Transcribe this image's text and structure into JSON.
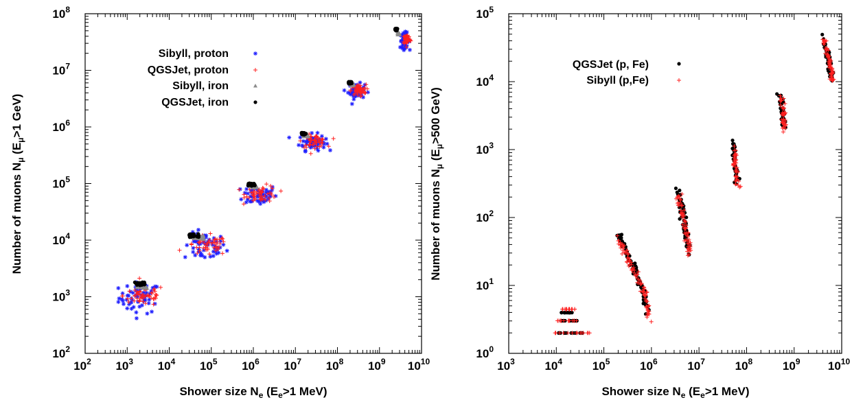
{
  "chart_data": [
    {
      "type": "scatter",
      "log_scale": {
        "x": true,
        "y": true
      },
      "xlabel": {
        "base": "Shower size N",
        "sub": "e",
        "mid": " (E",
        "sub2": "e",
        "tail": ">1 MeV)"
      },
      "ylabel": {
        "base": "Number of muons N",
        "sub": "μ",
        "mid": " (E",
        "sub2": "μ",
        "tail": ">1 GeV)"
      },
      "xlim_exp": [
        2,
        10
      ],
      "ylim_exp": [
        2,
        8
      ],
      "x_tick_labels": [
        "10",
        "10",
        "10",
        "10",
        "10",
        "10",
        "10",
        "10",
        "10"
      ],
      "x_tick_exps": [
        "2",
        "3",
        "4",
        "5",
        "6",
        "7",
        "8",
        "9",
        "10"
      ],
      "y_tick_labels": [
        "10",
        "10",
        "10",
        "10",
        "10",
        "10",
        "10"
      ],
      "y_tick_exps": [
        "2",
        "3",
        "4",
        "5",
        "6",
        "7",
        "8"
      ],
      "legend_position": "top-left",
      "series": [
        {
          "name": "Sibyll, proton",
          "marker": "star",
          "color": "#1f1fff",
          "clusters": [
            [
              3.3,
              2.98,
              0.55,
              0.25
            ],
            [
              4.85,
              3.88,
              0.55,
              0.22
            ],
            [
              6.15,
              4.8,
              0.45,
              0.17
            ],
            [
              7.4,
              5.73,
              0.35,
              0.13
            ],
            [
              8.45,
              6.63,
              0.22,
              0.12
            ],
            [
              9.6,
              7.53,
              0.12,
              0.12
            ]
          ]
        },
        {
          "name": "QGSJet, proton",
          "marker": "plus",
          "color": "#ff2020",
          "clusters": [
            [
              3.4,
              3.02,
              0.55,
              0.17
            ],
            [
              4.9,
              3.9,
              0.55,
              0.16
            ],
            [
              6.2,
              4.82,
              0.42,
              0.13
            ],
            [
              7.45,
              5.75,
              0.32,
              0.1
            ],
            [
              8.5,
              6.65,
              0.2,
              0.09
            ],
            [
              9.65,
              7.55,
              0.1,
              0.09
            ]
          ]
        },
        {
          "name": "Sibyll, iron",
          "marker": "triangle",
          "color": "#8c8c8c",
          "clusters": [
            [
              3.35,
              3.18,
              0.25,
              0.03
            ],
            [
              4.7,
              4.05,
              0.25,
              0.03
            ],
            [
              6.0,
              4.95,
              0.18,
              0.025
            ],
            [
              7.25,
              5.85,
              0.12,
              0.02
            ],
            [
              8.35,
              6.75,
              0.08,
              0.02
            ],
            [
              9.45,
              7.65,
              0.06,
              0.02
            ]
          ]
        },
        {
          "name": "QGSJet, iron",
          "marker": "dot",
          "color": "#000000",
          "clusters": [
            [
              3.3,
              3.23,
              0.25,
              0.03
            ],
            [
              4.6,
              4.08,
              0.25,
              0.03
            ],
            [
              5.95,
              4.98,
              0.18,
              0.025
            ],
            [
              7.2,
              5.88,
              0.12,
              0.02
            ],
            [
              8.3,
              6.78,
              0.08,
              0.02
            ],
            [
              9.4,
              7.72,
              0.06,
              0.02
            ]
          ]
        }
      ]
    },
    {
      "type": "scatter",
      "log_scale": {
        "x": true,
        "y": true
      },
      "xlabel": {
        "base": "Shower size N",
        "sub": "e",
        "mid": " (E",
        "sub2": "e",
        "tail": ">1 MeV)"
      },
      "ylabel": {
        "base": "Number of muons N",
        "sub": "μ",
        "mid": " (E",
        "sub2": "μ",
        "tail": ">500 GeV)"
      },
      "xlim_exp": [
        3,
        10
      ],
      "ylim_exp": [
        0,
        5
      ],
      "x_tick_labels": [
        "10",
        "10",
        "10",
        "10",
        "10",
        "10",
        "10",
        "10"
      ],
      "x_tick_exps": [
        "3",
        "4",
        "5",
        "6",
        "7",
        "8",
        "9",
        "10"
      ],
      "y_tick_labels": [
        "10",
        "10",
        "10",
        "10",
        "10",
        "10"
      ],
      "y_tick_exps": [
        "0",
        "1",
        "2",
        "3",
        "4",
        "5"
      ],
      "legend_position": "top-left",
      "series": [
        {
          "name": "QGSJet (p, Fe)",
          "marker": "dot",
          "color": "#000000",
          "tracks": [
            [
              [
                4.0,
                0.3
              ],
              [
                4.6,
                0.3
              ]
            ],
            [
              [
                4.05,
                0.48
              ],
              [
                4.45,
                0.48
              ]
            ],
            [
              [
                4.1,
                0.6
              ],
              [
                4.35,
                0.6
              ]
            ],
            [
              [
                5.3,
                1.75
              ],
              [
                5.5,
                1.45
              ],
              [
                5.7,
                1.15
              ],
              [
                5.85,
                0.9
              ],
              [
                5.9,
                0.6
              ]
            ],
            [
              [
                6.55,
                2.4
              ],
              [
                6.65,
                2.1
              ],
              [
                6.72,
                1.8
              ],
              [
                6.78,
                1.5
              ]
            ],
            [
              [
                7.72,
                3.1
              ],
              [
                7.76,
                2.8
              ],
              [
                7.8,
                2.5
              ]
            ],
            [
              [
                8.72,
                3.8
              ],
              [
                8.76,
                3.55
              ],
              [
                8.78,
                3.35
              ]
            ],
            [
              [
                9.6,
                4.65
              ],
              [
                9.7,
                4.4
              ],
              [
                9.75,
                4.2
              ],
              [
                9.8,
                4.05
              ]
            ]
          ]
        },
        {
          "name": "Sibyll (p,Fe)",
          "marker": "plus",
          "color": "#ff2020",
          "tracks": [
            [
              [
                3.95,
                0.3
              ],
              [
                4.7,
                0.3
              ]
            ],
            [
              [
                4.0,
                0.48
              ],
              [
                4.5,
                0.48
              ]
            ],
            [
              [
                4.1,
                0.65
              ],
              [
                4.4,
                0.65
              ]
            ],
            [
              [
                5.3,
                1.7
              ],
              [
                5.5,
                1.42
              ],
              [
                5.7,
                1.12
              ],
              [
                5.88,
                0.85
              ],
              [
                5.95,
                0.5
              ]
            ],
            [
              [
                6.55,
                2.35
              ],
              [
                6.65,
                2.05
              ],
              [
                6.75,
                1.75
              ],
              [
                6.8,
                1.45
              ]
            ],
            [
              [
                7.72,
                3.05
              ],
              [
                7.77,
                2.75
              ],
              [
                7.82,
                2.45
              ]
            ],
            [
              [
                8.72,
                3.78
              ],
              [
                8.77,
                3.5
              ],
              [
                8.8,
                3.3
              ]
            ],
            [
              [
                9.6,
                4.62
              ],
              [
                9.72,
                4.38
              ],
              [
                9.78,
                4.15
              ],
              [
                9.82,
                4.0
              ]
            ]
          ]
        }
      ]
    }
  ]
}
